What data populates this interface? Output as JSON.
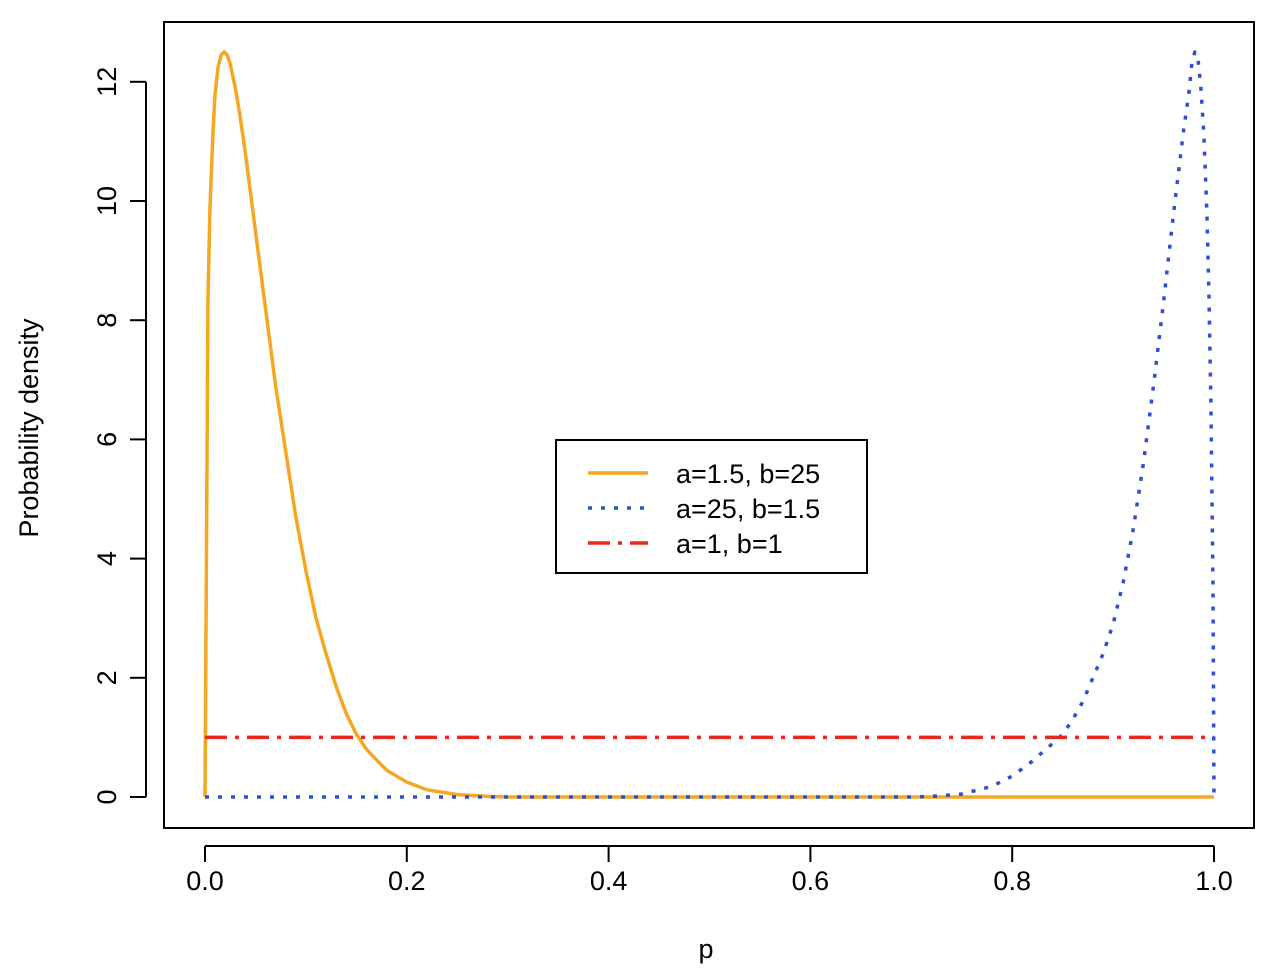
{
  "chart_data": {
    "type": "line",
    "title": "",
    "xlabel": "p",
    "ylabel": "Probability density",
    "xlim": [
      0,
      1
    ],
    "ylim": [
      0,
      12.5
    ],
    "x_ticks": [
      "0.0",
      "0.2",
      "0.4",
      "0.6",
      "0.8",
      "1.0"
    ],
    "y_ticks": [
      "0",
      "2",
      "4",
      "6",
      "8",
      "10",
      "12"
    ],
    "grid": false,
    "legend_position": "center",
    "series": [
      {
        "name": "a=1.5, b=25",
        "color": "#f5a623",
        "line_style": "solid",
        "x": [
          0.0,
          0.001,
          0.002,
          0.003,
          0.005,
          0.008,
          0.01,
          0.013,
          0.016,
          0.019,
          0.022,
          0.025,
          0.03,
          0.035,
          0.04,
          0.05,
          0.06,
          0.07,
          0.08,
          0.09,
          0.1,
          0.11,
          0.12,
          0.13,
          0.14,
          0.15,
          0.16,
          0.18,
          0.2,
          0.22,
          0.25,
          0.28,
          0.3,
          0.35,
          0.4,
          0.5,
          0.6,
          0.7,
          0.8,
          0.9,
          1.0
        ],
        "y": [
          0.0,
          2.8,
          5.6,
          8.4,
          9.9,
          11.2,
          11.8,
          12.25,
          12.45,
          12.5,
          12.45,
          12.3,
          11.9,
          11.4,
          10.8,
          9.5,
          8.2,
          6.9,
          5.8,
          4.7,
          3.8,
          3.0,
          2.4,
          1.85,
          1.4,
          1.05,
          0.8,
          0.45,
          0.25,
          0.12,
          0.04,
          0.01,
          0.0,
          0.0,
          0.0,
          0.0,
          0.0,
          0.0,
          0.0,
          0.0,
          0.0
        ]
      },
      {
        "name": "a=25, b=1.5",
        "color": "#2e4fcf",
        "line_style": "dotted",
        "x": [
          0.0,
          0.1,
          0.2,
          0.3,
          0.4,
          0.5,
          0.6,
          0.65,
          0.7,
          0.72,
          0.75,
          0.78,
          0.8,
          0.82,
          0.84,
          0.85,
          0.86,
          0.87,
          0.88,
          0.89,
          0.9,
          0.91,
          0.92,
          0.93,
          0.94,
          0.95,
          0.96,
          0.97,
          0.975,
          0.978,
          0.981,
          0.984,
          0.987,
          0.99,
          0.993,
          0.995,
          0.997,
          0.999,
          1.0
        ],
        "y": [
          0.0,
          0.0,
          0.0,
          0.0,
          0.0,
          0.0,
          0.0,
          0.0,
          0.0,
          0.01,
          0.05,
          0.18,
          0.35,
          0.6,
          0.9,
          1.05,
          1.3,
          1.6,
          2.0,
          2.4,
          2.9,
          3.6,
          4.5,
          5.6,
          6.9,
          8.3,
          9.8,
          11.2,
          11.8,
          12.3,
          12.5,
          12.4,
          11.9,
          11.1,
          9.8,
          8.4,
          6.5,
          3.5,
          0.0
        ]
      },
      {
        "name": "a=1, b=1",
        "color": "#e8271f",
        "line_style": "dashdot",
        "x": [
          0.0,
          1.0
        ],
        "y": [
          1.0,
          1.0
        ]
      }
    ]
  }
}
